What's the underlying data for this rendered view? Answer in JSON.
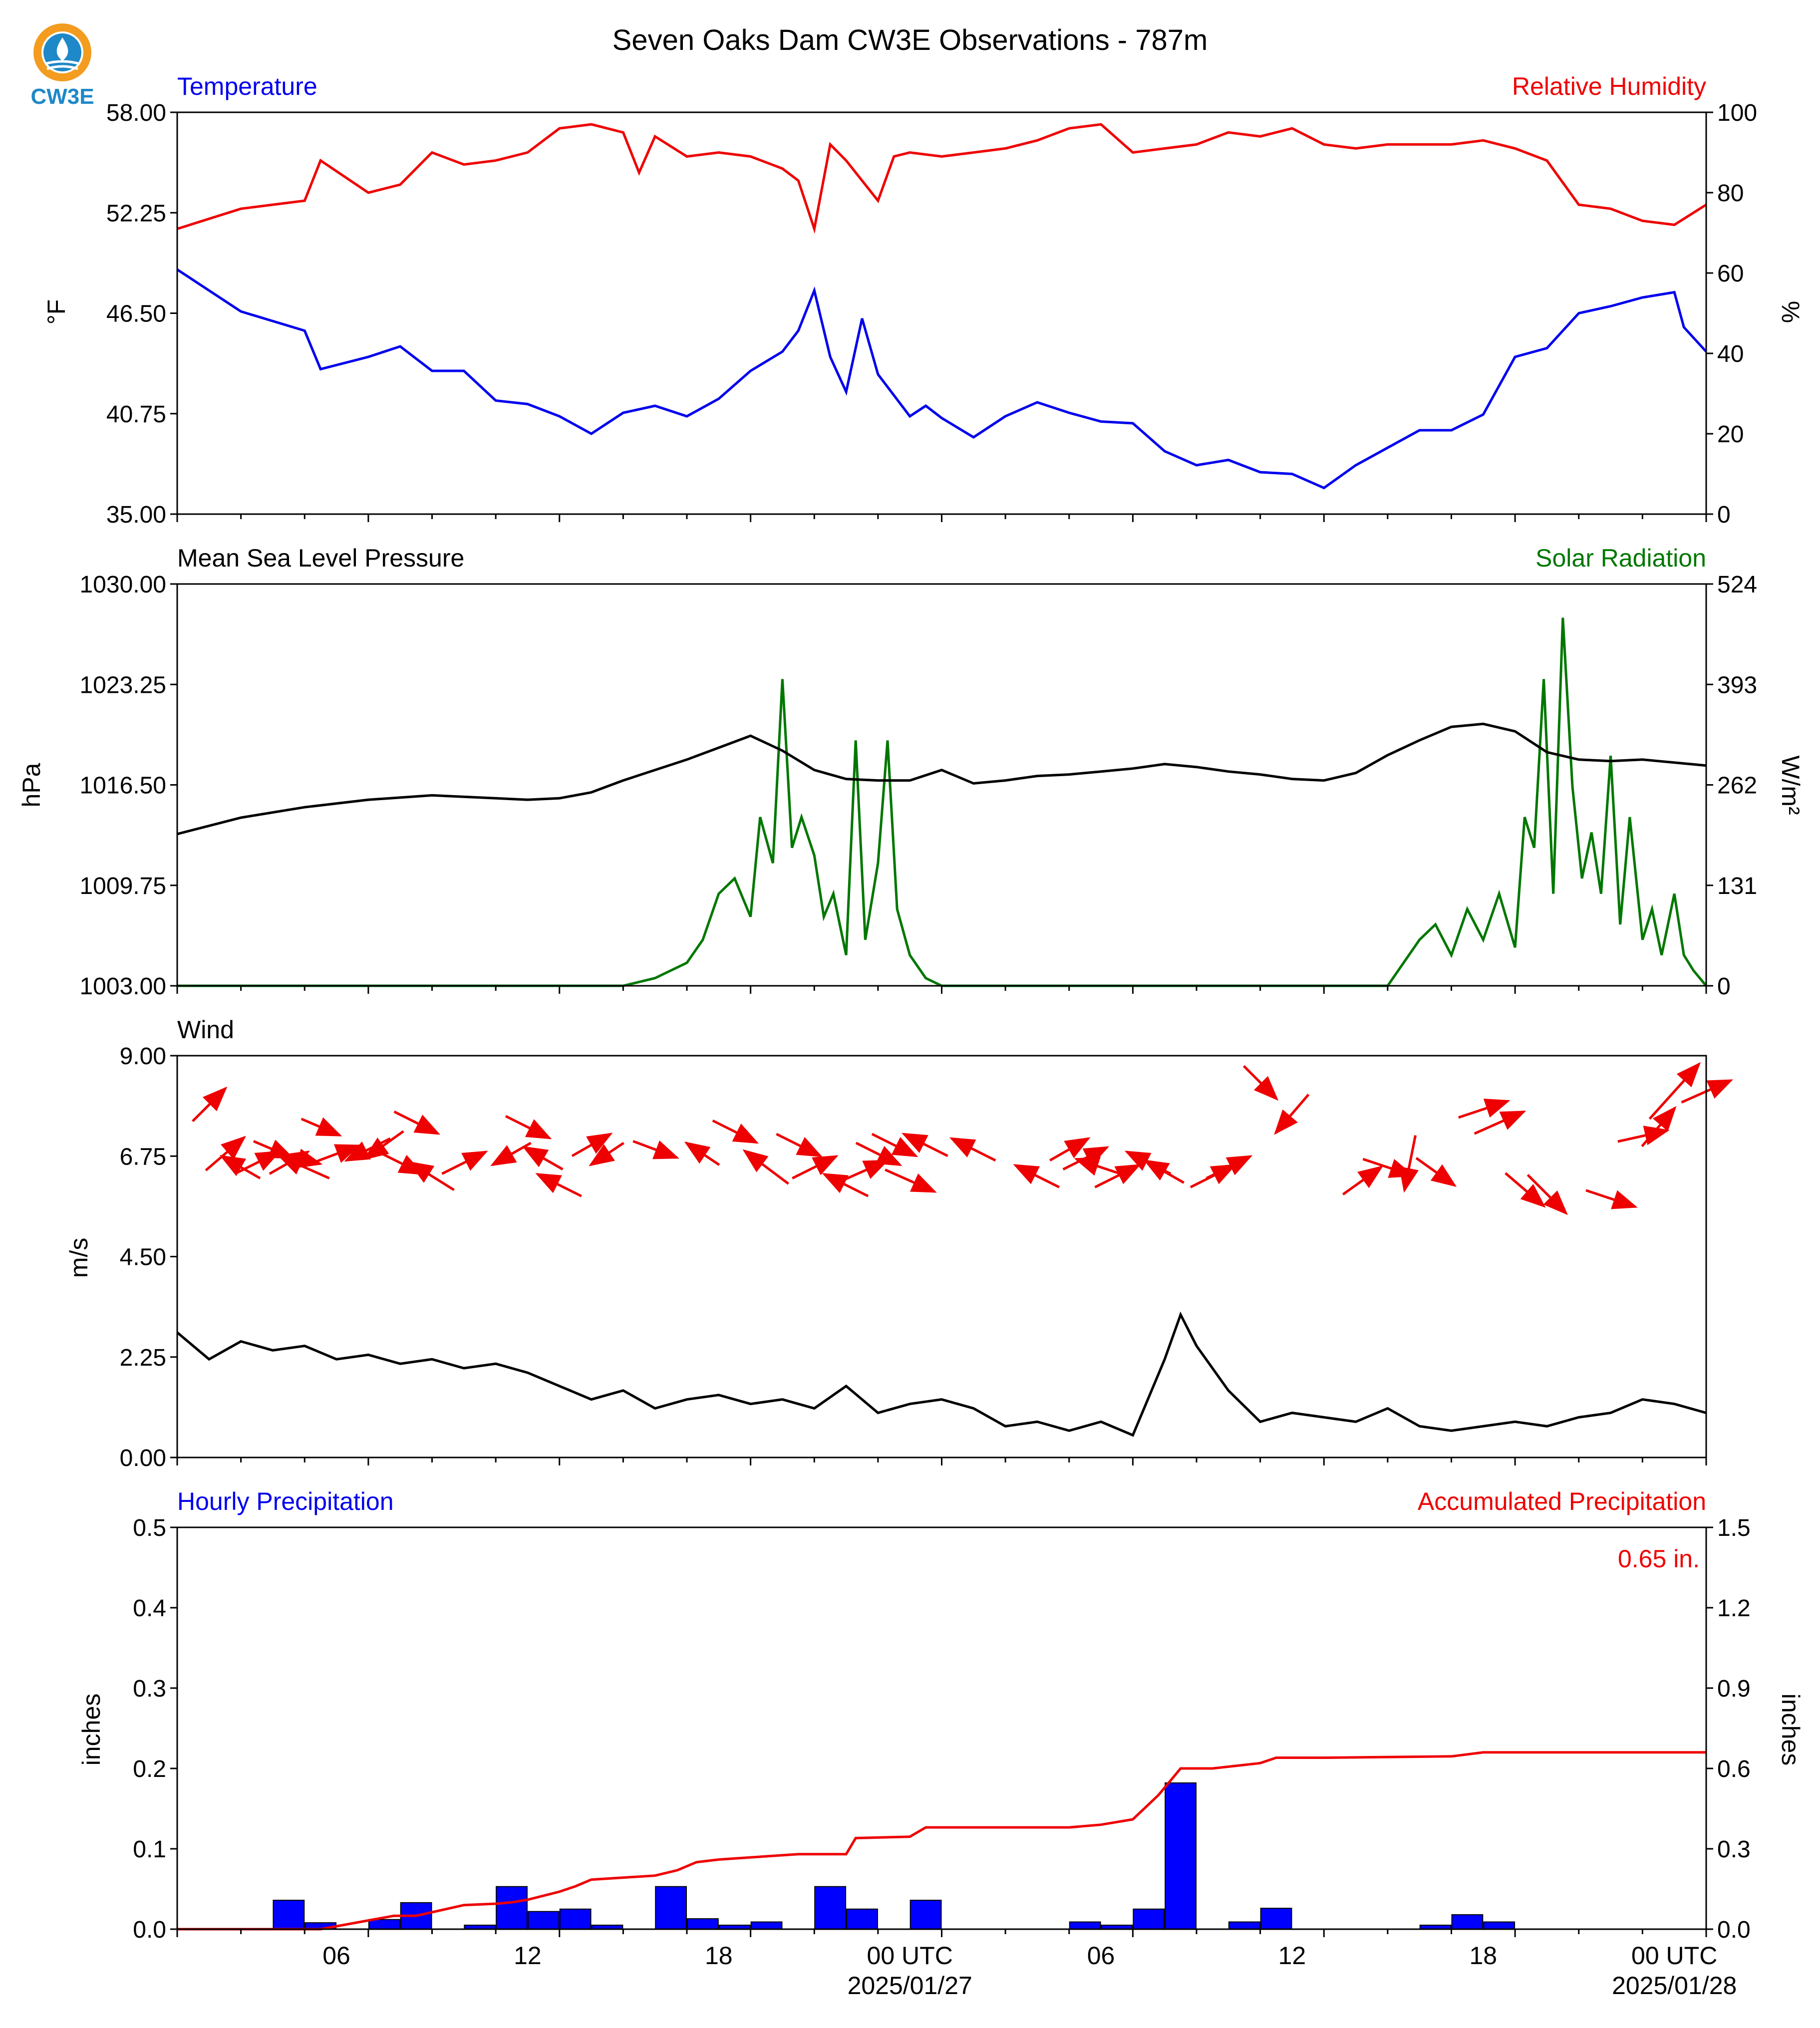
{
  "logo": {
    "text": "CW3E"
  },
  "title": "Seven Oaks Dam CW3E Observations - 787m",
  "colors": {
    "blue": "#0000ee",
    "red": "#ee0000",
    "green": "#007700",
    "black": "#000000",
    "bar_blue": "#0000ff"
  },
  "panels": {
    "temp_rh": {
      "left_title": "Temperature",
      "right_title": "Relative Humidity",
      "left_ylabel": "°F",
      "right_ylabel": "%",
      "left_ticks": [
        "58.00",
        "52.25",
        "46.50",
        "40.75",
        "35.00"
      ],
      "right_ticks": [
        "100",
        "80",
        "60",
        "40",
        "20",
        "0"
      ]
    },
    "pressure_solar": {
      "left_title": "Mean Sea Level Pressure",
      "right_title": "Solar Radiation",
      "left_ylabel": "hPa",
      "right_ylabel": "W/m²",
      "left_ticks": [
        "1030.00",
        "1023.25",
        "1016.50",
        "1009.75",
        "1003.00"
      ],
      "right_ticks": [
        "524",
        "393",
        "262",
        "131",
        "0"
      ]
    },
    "wind": {
      "left_title": "Wind",
      "left_ylabel": "m/s",
      "left_ticks": [
        "9.00",
        "6.75",
        "4.50",
        "2.25",
        "0.00"
      ]
    },
    "precip": {
      "left_title": "Hourly Precipitation",
      "right_title": "Accumulated Precipitation",
      "left_ylabel": "inches",
      "right_ylabel": "inches",
      "left_ticks": [
        "0.5",
        "0.4",
        "0.3",
        "0.2",
        "0.1",
        "0.0"
      ],
      "right_ticks": [
        "1.5",
        "1.2",
        "0.9",
        "0.6",
        "0.3",
        "0.0"
      ],
      "total_annotation": "0.65 in."
    }
  },
  "x_axis": {
    "tick_labels": [
      "06",
      "12",
      "18",
      "00 UTC",
      "06",
      "12",
      "18",
      "00 UTC"
    ],
    "date_labels": [
      "2025/01/27",
      "2025/01/28"
    ]
  },
  "chart_data": [
    {
      "type": "line",
      "title": "Temperature",
      "ylabel": "°F",
      "ylim": [
        35.0,
        58.0
      ],
      "x_range_hours": [
        0,
        48
      ],
      "x": [
        0,
        2,
        4,
        4.5,
        6,
        7,
        8,
        9,
        10,
        11,
        12,
        13,
        14,
        15,
        16,
        17,
        18,
        19,
        19.5,
        20,
        20.5,
        21,
        21.5,
        22,
        23,
        23.5,
        24,
        25,
        26,
        27,
        28,
        29,
        30,
        31,
        32,
        33,
        34,
        35,
        36,
        37,
        38,
        39,
        40,
        41,
        42,
        43,
        44,
        45,
        46,
        47,
        47.3,
        48
      ],
      "values": [
        49,
        46.6,
        45.5,
        43.3,
        44,
        44.6,
        43.2,
        43.2,
        41.5,
        41.3,
        40.6,
        39.6,
        40.8,
        41.2,
        40.6,
        41.6,
        43.2,
        44.3,
        45.5,
        47.8,
        44,
        42,
        46.2,
        43,
        40.6,
        41.2,
        40.5,
        39.4,
        40.6,
        41.4,
        40.8,
        40.3,
        40.2,
        38.6,
        37.8,
        38.1,
        37.4,
        37.3,
        36.5,
        37.8,
        38.8,
        39.8,
        39.8,
        40.7,
        44,
        44.5,
        46.5,
        46.9,
        47.4,
        47.7,
        45.7,
        44.3
      ]
    },
    {
      "type": "line",
      "title": "Relative Humidity",
      "ylabel": "%",
      "ylim": [
        0,
        100
      ],
      "x_range_hours": [
        0,
        48
      ],
      "x": [
        0,
        2,
        3,
        4,
        4.5,
        6,
        7,
        8,
        9,
        10,
        11,
        12,
        13,
        14,
        14.5,
        15,
        16,
        17,
        18,
        19,
        19.5,
        20,
        20.5,
        21,
        22,
        22.5,
        23,
        24,
        25,
        26,
        27,
        28,
        29,
        30,
        31,
        32,
        33,
        34,
        35,
        36,
        37,
        38,
        39,
        40,
        41,
        42,
        43,
        44,
        45,
        46,
        47,
        48
      ],
      "values": [
        71,
        76,
        77,
        78,
        88,
        80,
        82,
        90,
        87,
        88,
        90,
        96,
        97,
        95,
        85,
        94,
        89,
        90,
        89,
        86,
        83,
        71,
        92,
        88,
        78,
        89,
        90,
        89,
        90,
        91,
        93,
        96,
        97,
        90,
        91,
        92,
        95,
        94,
        96,
        92,
        91,
        92,
        92,
        92,
        93,
        91,
        88,
        77,
        76,
        73,
        72,
        77
      ]
    },
    {
      "type": "line",
      "title": "Mean Sea Level Pressure",
      "ylabel": "hPa",
      "ylim": [
        1003.0,
        1030.0
      ],
      "x_range_hours": [
        0,
        48
      ],
      "x": [
        0,
        2,
        4,
        6,
        8,
        10,
        11,
        12,
        13,
        14,
        16,
        17,
        18,
        19,
        20,
        21,
        22,
        23,
        24,
        25,
        26,
        27,
        28,
        29,
        30,
        31,
        32,
        33,
        34,
        35,
        36,
        37,
        38,
        39,
        40,
        41,
        42,
        43,
        44,
        45,
        46,
        47,
        48
      ],
      "values": [
        1013.2,
        1014.3,
        1015,
        1015.5,
        1015.8,
        1015.6,
        1015.5,
        1015.6,
        1016,
        1016.8,
        1018.2,
        1019,
        1019.8,
        1018.8,
        1017.5,
        1016.9,
        1016.8,
        1016.8,
        1017.5,
        1016.6,
        1016.8,
        1017.1,
        1017.2,
        1017.4,
        1017.6,
        1017.9,
        1017.7,
        1017.4,
        1017.2,
        1016.9,
        1016.8,
        1017.3,
        1018.5,
        1019.5,
        1020.4,
        1020.6,
        1020.1,
        1018.7,
        1018.2,
        1018.1,
        1018.2,
        1018.0,
        1017.8
      ]
    },
    {
      "type": "line",
      "title": "Solar Radiation",
      "ylabel": "W/m²",
      "ylim": [
        0,
        524
      ],
      "x_range_hours": [
        0,
        48
      ],
      "x": [
        0,
        14,
        15,
        16,
        16.5,
        17,
        17.5,
        18,
        18.3,
        18.7,
        19,
        19.3,
        19.6,
        20,
        20.3,
        20.6,
        21,
        21.3,
        21.6,
        22,
        22.3,
        22.6,
        23,
        23.5,
        24,
        38,
        39,
        39.5,
        40,
        40.5,
        41,
        41.5,
        42,
        42.3,
        42.6,
        42.9,
        43.2,
        43.5,
        43.8,
        44.1,
        44.4,
        44.7,
        45,
        45.3,
        45.6,
        46,
        46.3,
        46.6,
        47,
        47.3,
        47.6,
        48
      ],
      "values": [
        0,
        0,
        10,
        30,
        60,
        120,
        140,
        90,
        220,
        160,
        400,
        180,
        220,
        170,
        90,
        120,
        40,
        320,
        60,
        160,
        320,
        100,
        40,
        10,
        0,
        0,
        60,
        80,
        40,
        100,
        60,
        120,
        50,
        220,
        180,
        400,
        120,
        480,
        260,
        140,
        200,
        120,
        300,
        80,
        220,
        60,
        100,
        40,
        120,
        40,
        20,
        0
      ]
    },
    {
      "type": "line",
      "title": "Wind",
      "ylabel": "m/s",
      "ylim": [
        0.0,
        9.0
      ],
      "x_range_hours": [
        0,
        48
      ],
      "x": [
        0,
        1,
        2,
        3,
        4,
        5,
        6,
        7,
        8,
        9,
        10,
        11,
        12,
        13,
        14,
        15,
        16,
        17,
        18,
        19,
        20,
        21,
        22,
        23,
        24,
        25,
        26,
        27,
        28,
        29,
        30,
        31,
        31.5,
        32,
        33,
        34,
        35,
        36,
        37,
        38,
        39,
        40,
        41,
        42,
        43,
        44,
        45,
        46,
        47,
        48
      ],
      "values": [
        2.8,
        2.2,
        2.6,
        2.4,
        2.5,
        2.2,
        2.3,
        2.1,
        2.2,
        2.0,
        2.1,
        1.9,
        1.6,
        1.3,
        1.5,
        1.1,
        1.3,
        1.4,
        1.2,
        1.3,
        1.1,
        1.6,
        1.0,
        1.2,
        1.3,
        1.1,
        0.7,
        0.8,
        0.6,
        0.8,
        0.5,
        2.2,
        3.2,
        2.5,
        1.5,
        0.8,
        1.0,
        0.9,
        0.8,
        1.1,
        0.7,
        0.6,
        0.7,
        0.8,
        0.7,
        0.9,
        1.0,
        1.3,
        1.2,
        1.0
      ]
    },
    {
      "type": "bar",
      "title": "Hourly Precipitation",
      "ylabel": "inches",
      "ylim": [
        0.0,
        0.5
      ],
      "categories_hour": [
        3,
        4,
        6,
        7,
        9,
        10,
        11,
        12,
        13,
        15,
        16,
        17,
        18,
        20,
        21,
        23,
        28,
        29,
        30,
        31,
        33,
        34,
        39,
        40,
        41
      ],
      "values": [
        0.036,
        0.008,
        0.012,
        0.033,
        0.005,
        0.053,
        0.022,
        0.025,
        0.005,
        0.053,
        0.013,
        0.005,
        0.009,
        0.053,
        0.025,
        0.036,
        0.009,
        0.005,
        0.025,
        0.182,
        0.009,
        0.026,
        0.005,
        0.018,
        0.009
      ]
    },
    {
      "type": "line",
      "title": "Accumulated Precipitation",
      "ylabel": "inches",
      "ylim": [
        0.0,
        1.5
      ],
      "x_range_hours": [
        0,
        48
      ],
      "x": [
        0,
        4.5,
        6.8,
        7.5,
        9,
        10,
        10.5,
        11,
        12,
        12.5,
        13,
        15,
        15.7,
        16.3,
        17,
        19.5,
        21,
        21.3,
        23,
        23.5,
        28,
        29,
        30,
        30.8,
        31.5,
        32.5,
        34,
        34.5,
        36,
        40,
        41,
        48
      ],
      "values": [
        0,
        0,
        0.05,
        0.05,
        0.09,
        0.095,
        0.1,
        0.11,
        0.14,
        0.16,
        0.185,
        0.2,
        0.22,
        0.25,
        0.26,
        0.28,
        0.28,
        0.34,
        0.345,
        0.38,
        0.38,
        0.39,
        0.41,
        0.5,
        0.6,
        0.6,
        0.62,
        0.64,
        0.64,
        0.645,
        0.66,
        0.66
      ]
    },
    {
      "type": "scatter",
      "title": "Wind direction arrows",
      "series": [
        {
          "name": "",
          "x_hour": [
            1,
            1.5,
            2,
            2.5,
            3,
            3.5,
            3.8,
            4,
            4.5,
            5,
            6,
            6.5,
            7,
            7.5,
            8,
            9,
            10.5,
            11,
            11.5,
            12,
            13,
            13.5,
            15,
            16.5,
            17.5,
            18.5,
            19.5,
            20,
            21,
            21.5,
            22,
            22.5,
            23,
            23.5,
            25,
            27,
            28,
            28.5,
            29,
            29.5,
            30.5,
            31,
            32.5,
            33,
            34,
            35,
            37.2,
            38,
            38.7,
            39.5,
            41,
            41.5,
            42.3,
            43,
            45,
            46,
            46.5,
            47,
            48
          ],
          "y_ms": [
            7.9,
            6.8,
            6.5,
            6.6,
            6.9,
            6.6,
            6.7,
            6.5,
            7.4,
            6.8,
            6.9,
            7.0,
            6.6,
            7.5,
            6.3,
            6.6,
            6.8,
            7.4,
            6.7,
            6.1,
            7.0,
            6.8,
            6.9,
            6.8,
            7.3,
            6.5,
            7.0,
            6.5,
            6.1,
            6.4,
            6.8,
            7.0,
            6.2,
            7.0,
            6.9,
            6.3,
            6.9,
            6.7,
            6.5,
            6.3,
            6.6,
            6.4,
            6.3,
            6.5,
            8.4,
            7.7,
            6.2,
            6.5,
            6.6,
            6.4,
            7.8,
            7.5,
            6.0,
            5.9,
            5.8,
            7.2,
            7.4,
            8.2,
            8.2
          ],
          "u": [
            0.6,
            0.7,
            -0.7,
            0.8,
            0.7,
            0.7,
            0.8,
            -0.9,
            0.7,
            0.8,
            -0.8,
            -0.7,
            0.8,
            0.8,
            -0.8,
            0.8,
            -0.7,
            0.8,
            -0.7,
            -0.8,
            0.7,
            -0.6,
            0.8,
            -0.6,
            0.8,
            -0.8,
            0.8,
            0.8,
            -0.8,
            0.9,
            0.8,
            0.8,
            0.9,
            -0.8,
            -0.8,
            -0.8,
            0.7,
            0.8,
            -0.9,
            0.8,
            -0.8,
            -0.7,
            0.8,
            0.8,
            0.6,
            -0.6,
            0.7,
            0.9,
            -0.2,
            0.7,
            0.9,
            0.9,
            0.7,
            0.7,
            0.9,
            0.9,
            0.6,
            0.9,
            0.9
          ],
          "v": [
            0.6,
            0.6,
            0.4,
            0.4,
            -0.3,
            0.4,
            -0.2,
            0.4,
            -0.3,
            0.3,
            -0.4,
            -0.5,
            -0.4,
            -0.4,
            0.5,
            0.4,
            -0.4,
            -0.4,
            0.4,
            0.4,
            0.4,
            -0.4,
            -0.3,
            0.4,
            -0.4,
            0.6,
            -0.4,
            0.4,
            0.4,
            0.4,
            -0.4,
            -0.4,
            -0.4,
            0.4,
            0.4,
            0.4,
            0.4,
            0.4,
            0.3,
            0.4,
            0.4,
            0.4,
            0.4,
            0.4,
            -0.6,
            -0.7,
            0.5,
            -0.3,
            -1.0,
            -0.5,
            0.3,
            0.4,
            -0.6,
            -0.7,
            -0.3,
            0.2,
            0.7,
            1.0,
            0.4
          ]
        }
      ]
    }
  ]
}
